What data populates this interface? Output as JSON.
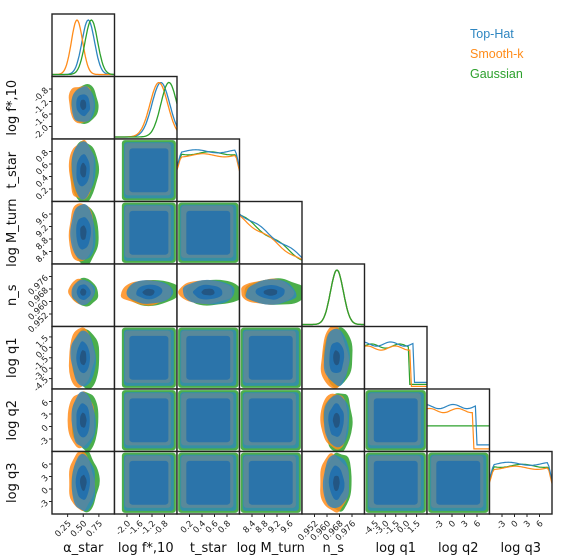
{
  "chart_data": {
    "type": "corner",
    "params": [
      {
        "key": "alpha_star",
        "label": "α_star",
        "ticks": [
          "0.25",
          "0.50",
          "0.75"
        ],
        "range": [
          0.0,
          1.0
        ]
      },
      {
        "key": "logf",
        "label": "log f*,10",
        "ticks": [
          "-2.0",
          "-1.6",
          "-1.2",
          "-0.8"
        ],
        "range": [
          -2.1,
          -0.55
        ]
      },
      {
        "key": "tstar",
        "label": "t_star",
        "ticks": [
          "0.2",
          "0.4",
          "0.6",
          "0.8"
        ],
        "range": [
          0.0,
          1.0
        ]
      },
      {
        "key": "logMturn",
        "label": "log M_turn",
        "ticks": [
          "8.4",
          "8.8",
          "9.2",
          "9.6"
        ],
        "range": [
          8.1,
          10.0
        ]
      },
      {
        "key": "ns",
        "label": "n_s",
        "ticks": [
          "0.952",
          "0.960",
          "0.968",
          "0.976"
        ],
        "range": [
          0.948,
          0.982
        ]
      },
      {
        "key": "logq1",
        "label": "log q1",
        "ticks": [
          "-4.5",
          "-3.0",
          "-1.5",
          "0.0",
          "1.5"
        ],
        "range": [
          -5.0,
          2.5
        ]
      },
      {
        "key": "logq2",
        "label": "log q2",
        "ticks": [
          "-3",
          "0",
          "3",
          "6"
        ],
        "range": [
          -4.5,
          8.5
        ]
      },
      {
        "key": "logq3",
        "label": "log q3",
        "ticks": [
          "-3",
          "0",
          "3",
          "6"
        ],
        "range": [
          -4.5,
          8.5
        ]
      }
    ],
    "row_tick_rows": {
      "1": [
        "-0.8",
        "-1.2",
        "-1.6",
        "-2.0"
      ],
      "2": [
        "0.8",
        "0.6",
        "0.4",
        "0.2"
      ],
      "3": [
        "9.6",
        "9.2",
        "8.8",
        "8.4"
      ],
      "4": [
        "0.976",
        "0.968",
        "0.960",
        "0.952"
      ],
      "5": [
        "1.5",
        "0.0",
        "-1.5",
        "-3.0",
        "-4.5"
      ],
      "6": [
        "6",
        "3",
        "0",
        "-3"
      ],
      "7": [
        "6",
        "3",
        "0",
        "-3"
      ]
    },
    "series": [
      {
        "name": "Top-Hat",
        "color": "#2e86c1"
      },
      {
        "name": "Smooth-k",
        "color": "#ff8c1a"
      },
      {
        "name": "Gaussian",
        "color": "#2ca02c"
      }
    ],
    "marginals": [
      {
        "param": "alpha_star",
        "series": [
          {
            "name": "Top-Hat",
            "peak": 0.58,
            "width": 0.1
          },
          {
            "name": "Smooth-k",
            "peak": 0.4,
            "width": 0.09
          },
          {
            "name": "Gaussian",
            "peak": 0.63,
            "width": 0.1
          }
        ]
      },
      {
        "param": "logf",
        "series": [
          {
            "name": "Top-Hat",
            "peak": -0.95,
            "width": 0.22
          },
          {
            "name": "Smooth-k",
            "peak": -1.0,
            "width": 0.22
          },
          {
            "name": "Gaussian",
            "peak": -0.75,
            "width": 0.2
          }
        ]
      },
      {
        "param": "tstar",
        "shape": "flat"
      },
      {
        "param": "logMturn",
        "shape": "decreasing"
      },
      {
        "param": "ns",
        "series": [
          {
            "name": "Top-Hat",
            "peak": 0.967,
            "width": 0.0035
          },
          {
            "name": "Smooth-k",
            "peak": 0.967,
            "width": 0.0035
          },
          {
            "name": "Gaussian",
            "peak": 0.967,
            "width": 0.0035
          }
        ]
      },
      {
        "param": "logq1",
        "shape": "step-down"
      },
      {
        "param": "logq2",
        "shape": "step-down"
      },
      {
        "param": "logq3",
        "shape": "flat"
      }
    ],
    "legend_position": "top-right",
    "grid": false
  }
}
